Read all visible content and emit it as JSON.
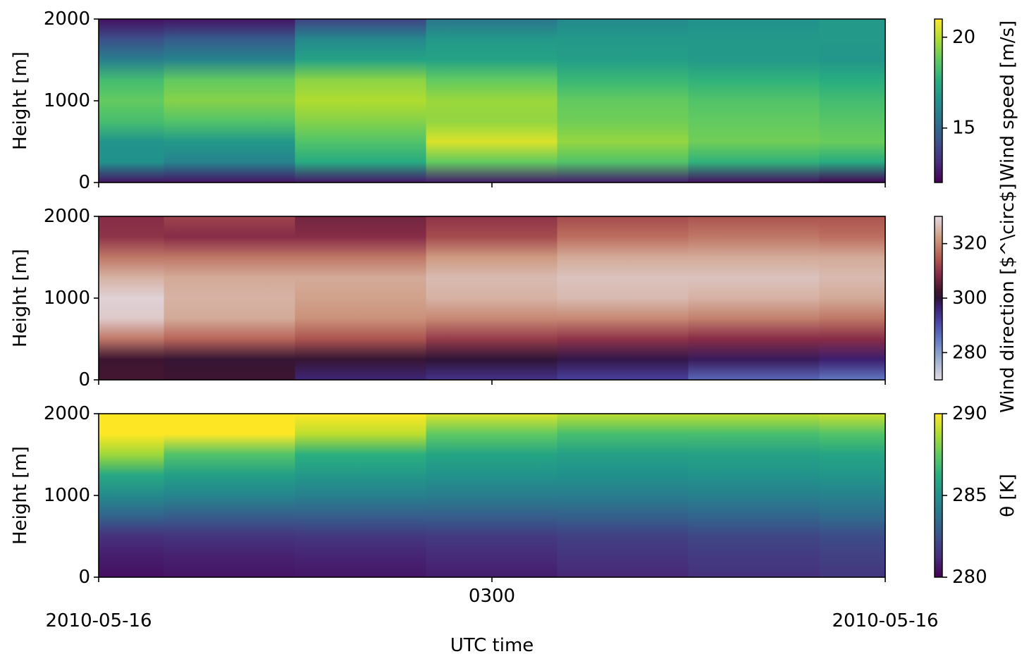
{
  "chart_data": [
    {
      "type": "heatmap",
      "title": "",
      "ylabel": "Height [m]",
      "ylim": [
        0,
        2000
      ],
      "yticks": [
        "0",
        "1000",
        "2000"
      ],
      "xticks": [],
      "colorbar": {
        "label": "Wind speed [m/s]",
        "colormap": "viridis",
        "range": [
          12,
          21
        ],
        "ticks": [
          15,
          20
        ],
        "tick_labels": [
          "15",
          "20"
        ]
      },
      "x": [
        0,
        1,
        2,
        3,
        4,
        5,
        6
      ],
      "y": [
        0,
        250,
        500,
        750,
        1000,
        1250,
        1500,
        1750,
        2000
      ],
      "z": [
        [
          12.5,
          12.5,
          12.6,
          12.7,
          12.7,
          12.4,
          12.1
        ],
        [
          16.5,
          16.0,
          17.5,
          18.8,
          18.5,
          17.8,
          17.5
        ],
        [
          16.6,
          16.8,
          18.5,
          20.5,
          19.5,
          19.0,
          18.9
        ],
        [
          18.3,
          18.5,
          19.3,
          19.5,
          19.0,
          18.8,
          18.6
        ],
        [
          18.8,
          19.3,
          19.9,
          19.6,
          18.8,
          18.5,
          18.2
        ],
        [
          18.2,
          18.8,
          19.4,
          18.8,
          18.0,
          17.8,
          17.6
        ],
        [
          15.8,
          16.0,
          17.2,
          17.2,
          17.0,
          16.8,
          16.7
        ],
        [
          14.2,
          14.6,
          16.2,
          16.8,
          16.8,
          16.8,
          16.8
        ],
        [
          12.4,
          12.5,
          13.8,
          15.5,
          16.2,
          16.5,
          16.8
        ]
      ]
    },
    {
      "type": "heatmap",
      "title": "",
      "ylabel": "Height [m]",
      "ylim": [
        0,
        2000
      ],
      "yticks": [
        "0",
        "1000",
        "2000"
      ],
      "xticks": [],
      "colorbar": {
        "label": "Wind direction [$^\\circ$]",
        "colormap": "twilight",
        "range": [
          270,
          330
        ],
        "ticks": [
          280,
          300,
          320
        ],
        "tick_labels": [
          "280",
          "300",
          "320"
        ]
      },
      "x": [
        0,
        1,
        2,
        3,
        4,
        5,
        6
      ],
      "y": [
        0,
        250,
        500,
        750,
        1000,
        1250,
        1500,
        1750,
        2000
      ],
      "z": [
        [
          303,
          302,
          296,
          294,
          292,
          287,
          285
        ],
        [
          302,
          301,
          301,
          300,
          299,
          298,
          297
        ],
        [
          318,
          316,
          314,
          311,
          310,
          309,
          309
        ],
        [
          328,
          324,
          321,
          320,
          320,
          319,
          318
        ],
        [
          329,
          325,
          323,
          325,
          326,
          325,
          324
        ],
        [
          325,
          324,
          324,
          326,
          327,
          327,
          326
        ],
        [
          318,
          318,
          318,
          322,
          324,
          324,
          324
        ],
        [
          310,
          309,
          309,
          313,
          317,
          318,
          317
        ],
        [
          309,
          312,
          307,
          310,
          313,
          314,
          314
        ]
      ]
    },
    {
      "type": "heatmap",
      "title": "",
      "xlabel": "UTC time",
      "ylabel": "Height [m]",
      "ylim": [
        0,
        2000
      ],
      "yticks": [
        "0",
        "1000",
        "2000"
      ],
      "xticks": [
        "2010-05-16",
        "0300",
        "2010-05-16"
      ],
      "colorbar": {
        "label": "θ [K]",
        "colormap": "viridis",
        "range": [
          280,
          290
        ],
        "ticks": [
          280,
          285,
          290
        ],
        "tick_labels": [
          "280",
          "285",
          "290"
        ]
      },
      "x": [
        0,
        1,
        2,
        3,
        4,
        5,
        6
      ],
      "y": [
        0,
        250,
        500,
        750,
        1000,
        1250,
        1500,
        1750,
        2000
      ],
      "z": [
        [
          280.4,
          280.5,
          280.6,
          280.8,
          281.1,
          281.4,
          281.6
        ],
        [
          280.8,
          280.9,
          281.0,
          281.2,
          281.5,
          281.7,
          281.9
        ],
        [
          281.4,
          281.5,
          281.6,
          281.7,
          281.9,
          282.1,
          282.3
        ],
        [
          283.2,
          283.0,
          283.0,
          283.0,
          283.1,
          283.3,
          283.5
        ],
        [
          284.7,
          284.5,
          284.3,
          284.2,
          284.2,
          284.3,
          284.4
        ],
        [
          286.0,
          285.6,
          285.3,
          285.1,
          285.0,
          285.1,
          285.2
        ],
        [
          288.5,
          287.2,
          286.3,
          285.8,
          285.6,
          285.7,
          285.8
        ],
        [
          290.0,
          290.0,
          289.0,
          287.5,
          287.0,
          287.0,
          287.2
        ],
        [
          290.0,
          290.0,
          290.0,
          289.5,
          289.0,
          289.0,
          289.2
        ]
      ]
    }
  ]
}
